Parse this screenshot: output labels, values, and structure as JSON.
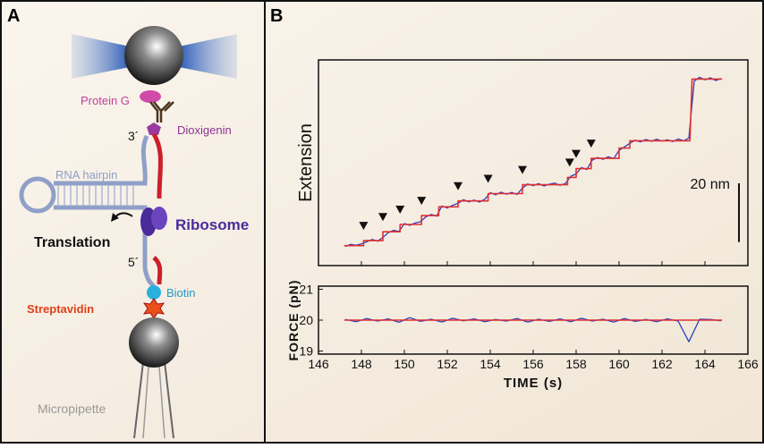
{
  "panels": {
    "a": "A",
    "b": "B"
  },
  "diagram": {
    "labels": {
      "protein_g": "Protein G",
      "dioxigenin": "Dioxigenin",
      "three_prime": "3´",
      "rna_hairpin": "RNA hairpin",
      "ribosome": "Ribosome",
      "translation": "Translation",
      "five_prime": "5´",
      "biotin": "Biotin",
      "streptavidin": "Streptavidin",
      "micropipette": "Micropipette"
    }
  },
  "chart_data": [
    {
      "type": "line",
      "ylabel": "Extension",
      "xlim": [
        146,
        166
      ],
      "xticks": [
        146,
        148,
        150,
        152,
        154,
        156,
        158,
        160,
        162,
        164,
        166
      ],
      "ylim": [
        0,
        70
      ],
      "scale_bar": {
        "value": 20,
        "label": "20 nm"
      },
      "step_markers": [
        148.1,
        149.0,
        149.8,
        150.8,
        152.5,
        153.9,
        155.5,
        157.7,
        158.0,
        158.7
      ],
      "series": [
        {
          "color": "#2b3fbf",
          "x": [
            147.25,
            147.5,
            147.75,
            148.0,
            148.25,
            148.5,
            148.75,
            149.0,
            149.25,
            149.5,
            149.75,
            150.0,
            150.25,
            150.5,
            150.75,
            151.0,
            151.25,
            151.5,
            151.75,
            152.0,
            152.25,
            152.5,
            152.75,
            153.0,
            153.25,
            153.5,
            153.75,
            154.0,
            154.25,
            154.5,
            154.75,
            155.0,
            155.25,
            155.5,
            155.75,
            156.0,
            156.25,
            156.5,
            156.75,
            157.0,
            157.25,
            157.5,
            157.75,
            158.0,
            158.25,
            158.5,
            158.75,
            159.0,
            159.25,
            159.5,
            159.75,
            160.0,
            160.25,
            160.5,
            160.75,
            161.0,
            161.25,
            161.5,
            161.75,
            162.0,
            162.25,
            162.5,
            162.75,
            163.0,
            163.25,
            163.5,
            163.75,
            164.0,
            164.25,
            164.5,
            164.75
          ],
          "values": [
            6.5,
            7.2,
            6.9,
            7.4,
            8.1,
            8.9,
            8.3,
            9.6,
            11.2,
            12.0,
            11.6,
            14.3,
            13.7,
            14.5,
            14.9,
            16.6,
            17.4,
            16.8,
            20.3,
            19.6,
            20.5,
            21.2,
            22.4,
            21.7,
            22.3,
            21.6,
            22.6,
            24.8,
            24.1,
            25.0,
            24.3,
            24.9,
            24.2,
            26.4,
            27.8,
            27.2,
            27.9,
            27.1,
            27.7,
            28.1,
            27.3,
            27.9,
            30.4,
            31.2,
            33.4,
            32.7,
            35.9,
            36.8,
            36.2,
            37.0,
            36.4,
            39.2,
            40.4,
            41.6,
            42.7,
            42.1,
            42.9,
            42.3,
            43.0,
            42.4,
            42.8,
            42.2,
            43.1,
            42.5,
            43.4,
            62.8,
            64.1,
            63.2,
            63.9,
            63.0,
            63.6
          ]
        },
        {
          "color": "#e03030",
          "x": [
            147.2,
            148.1,
            148.1,
            149.0,
            149.0,
            149.8,
            149.8,
            150.8,
            150.8,
            151.6,
            151.6,
            152.5,
            152.5,
            153.9,
            153.9,
            155.5,
            155.5,
            157.6,
            157.6,
            158.0,
            158.0,
            158.7,
            158.7,
            160.0,
            160.0,
            160.5,
            160.5,
            163.3,
            163.4,
            164.8
          ],
          "values": [
            6.8,
            6.8,
            8.5,
            8.5,
            11.5,
            11.5,
            14,
            14,
            17,
            17,
            20,
            20,
            22,
            22,
            24.5,
            24.5,
            27.5,
            27.5,
            30,
            30,
            33,
            33,
            36.5,
            36.5,
            40,
            40,
            42.5,
            42.5,
            63.5,
            63.5
          ]
        }
      ]
    },
    {
      "type": "line",
      "xlabel": "TIME (s)",
      "ylabel": "FORCE (pN)",
      "xlim": [
        146,
        166
      ],
      "xticks": [
        146,
        148,
        150,
        152,
        154,
        156,
        158,
        160,
        162,
        164,
        166
      ],
      "ylim": [
        18.9,
        21.1
      ],
      "yticks": [
        19,
        20,
        21
      ],
      "series": [
        {
          "color": "#2b3fbf",
          "x": [
            147.25,
            147.75,
            148.25,
            148.75,
            149.25,
            149.75,
            150.25,
            150.75,
            151.25,
            151.75,
            152.25,
            152.75,
            153.25,
            153.75,
            154.25,
            154.75,
            155.25,
            155.75,
            156.25,
            156.75,
            157.25,
            157.75,
            158.25,
            158.75,
            159.25,
            159.75,
            160.25,
            160.75,
            161.25,
            161.75,
            162.25,
            162.75,
            163.25,
            163.75,
            164.25,
            164.75
          ],
          "values": [
            20.02,
            19.95,
            20.05,
            19.97,
            20.04,
            19.93,
            20.08,
            19.96,
            20.03,
            19.94,
            20.06,
            19.98,
            20.04,
            19.95,
            20.02,
            19.97,
            20.05,
            19.94,
            20.03,
            19.96,
            20.04,
            19.95,
            20.06,
            19.97,
            20.03,
            19.94,
            20.05,
            19.96,
            20.02,
            19.95,
            20.04,
            19.97,
            19.3,
            20.03,
            20.02,
            19.98
          ]
        },
        {
          "color": "#e03030",
          "x": [
            147.2,
            164.8
          ],
          "values": [
            20,
            20
          ]
        }
      ]
    }
  ]
}
